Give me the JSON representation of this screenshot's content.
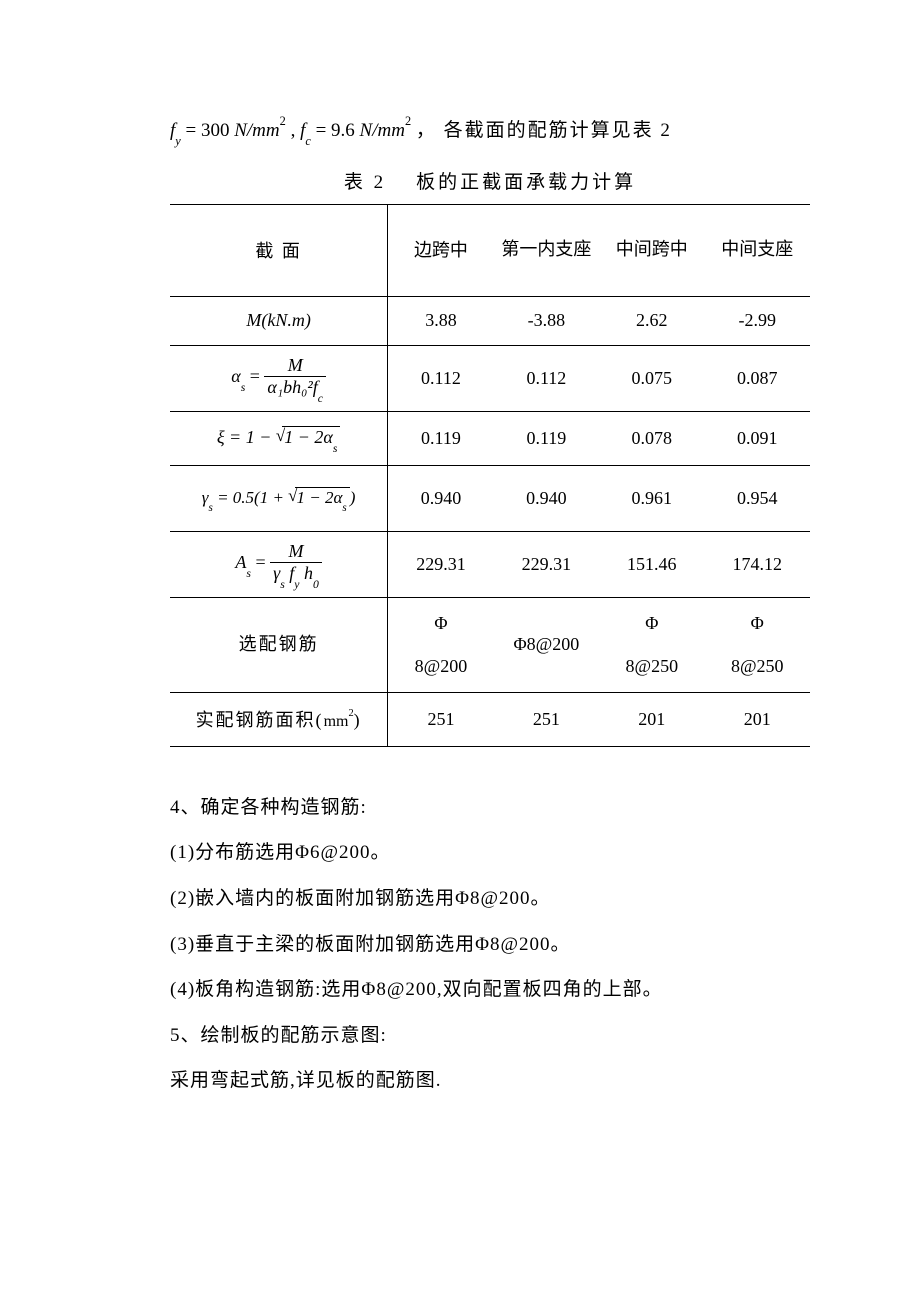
{
  "top_formula": {
    "fy_symbol": "f",
    "fy_sub": "y",
    "fy_val": "300",
    "unit1": "N/mm",
    "sup2": "2",
    "fc_symbol": "f",
    "fc_sub": "c",
    "fc_val": "9.6",
    "tail_text": "各截面的配筋计算见表 2"
  },
  "caption": {
    "left": "表 2",
    "right": "板的正截面承载力计算"
  },
  "headers": {
    "section": "截  面",
    "c1": "边跨中",
    "c2": "第一内支座",
    "c3": "中间跨中",
    "c4": "中间支座"
  },
  "row_labels": {
    "r1": "M(kN.m)",
    "r2_lhs": "α",
    "r2_sub": "s",
    "r2_eq": " = ",
    "r2_num": "M",
    "r2_den": "α₁bh₀²f",
    "r2_den_sub": "c",
    "r3_lhs": "ξ = 1 − ",
    "r3_inner": "1 − 2α",
    "r3_sub": "s",
    "r4_lhs": "γ",
    "r4_sub": "s",
    "r4_mid": " = 0.5(1 + ",
    "r4_inner": "1 − 2α",
    "r4_end": ")",
    "r5_lhs": "A",
    "r5_sub": "s",
    "r5_num": "M",
    "r5_den": "γ",
    "r5_den2": "f",
    "r5_den2_sub": "y",
    "r5_den3": "h",
    "r5_den3_sub": "0",
    "r6": "选配钢筋",
    "r7_pre": "实配钢筋面积(",
    "r7_unit": "mm",
    "r7_post": ")"
  },
  "values": {
    "r1": [
      "3.88",
      "-3.88",
      "2.62",
      "-2.99"
    ],
    "r2": [
      "0.112",
      "0.112",
      "0.075",
      "0.087"
    ],
    "r3": [
      "0.119",
      "0.119",
      "0.078",
      "0.091"
    ],
    "r4": [
      "0.940",
      "0.940",
      "0.961",
      "0.954"
    ],
    "r5": [
      "229.31",
      "229.31",
      "151.46",
      "174.12"
    ],
    "r6_a": [
      "Φ",
      "Φ8@200",
      "Φ",
      "Φ"
    ],
    "r6_b": [
      "8@200",
      "",
      "8@250",
      "8@250"
    ],
    "r7": [
      "251",
      "251",
      "201",
      "201"
    ]
  },
  "paragraphs": {
    "p1": "4、确定各种构造钢筋:",
    "p2": "(1)分布筋选用Φ6@200。",
    "p3": "(2)嵌入墙内的板面附加钢筋选用Φ8@200。",
    "p4": "(3)垂直于主梁的板面附加钢筋选用Φ8@200。",
    "p5": "(4)板角构造钢筋:选用Φ8@200,双向配置板四角的上部。",
    "p6": "5、绘制板的配筋示意图:",
    "p7": "采用弯起式筋,详见板的配筋图."
  },
  "style": {
    "page_bg": "#ffffff",
    "text_color": "#000000",
    "table_border_color": "#000000",
    "font_body_size_pt": 14,
    "font_table_size_pt": 13
  }
}
